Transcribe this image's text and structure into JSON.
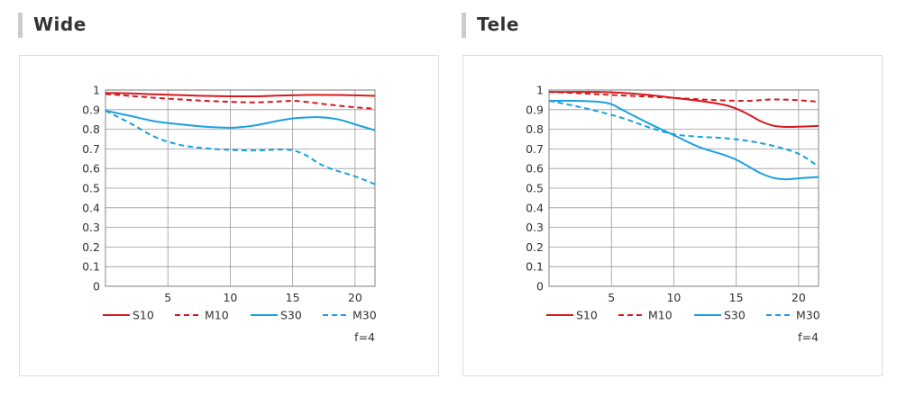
{
  "panels": [
    {
      "heading": "Wide"
    },
    {
      "heading": "Tele"
    }
  ],
  "colors": {
    "red": "#d7191f",
    "blue": "#1aa0e0",
    "grid": "#999999",
    "heading_bar": "#cccccc"
  },
  "chart_data": [
    {
      "type": "line",
      "title": "Wide",
      "xlim": [
        0,
        21.6
      ],
      "ylim": [
        0,
        1
      ],
      "xticks": [
        "5",
        "10",
        "15",
        "20"
      ],
      "xtick_values": [
        5,
        10,
        15,
        20
      ],
      "yticks": [
        "0",
        "0.1",
        "0.2",
        "0.3",
        "0.4",
        "0.5",
        "0.6",
        "0.7",
        "0.8",
        "0.9",
        "1"
      ],
      "ytick_values": [
        0,
        0.1,
        0.2,
        0.3,
        0.4,
        0.5,
        0.6,
        0.7,
        0.8,
        0.9,
        1
      ],
      "grid": true,
      "legend_position": "bottom",
      "annotation": "f=4",
      "series": [
        {
          "name": "S10",
          "color": "#d7191f",
          "dash": "solid",
          "points": [
            [
              0,
              0.985
            ],
            [
              2,
              0.983
            ],
            [
              4,
              0.978
            ],
            [
              6,
              0.974
            ],
            [
              8,
              0.97
            ],
            [
              10,
              0.968
            ],
            [
              12,
              0.968
            ],
            [
              14,
              0.972
            ],
            [
              16,
              0.975
            ],
            [
              18,
              0.975
            ],
            [
              20,
              0.973
            ],
            [
              21.6,
              0.97
            ]
          ]
        },
        {
          "name": "M10",
          "color": "#d7191f",
          "dash": "dashed",
          "points": [
            [
              0,
              0.98
            ],
            [
              2,
              0.97
            ],
            [
              4,
              0.96
            ],
            [
              6,
              0.952
            ],
            [
              8,
              0.945
            ],
            [
              10,
              0.94
            ],
            [
              12,
              0.937
            ],
            [
              14,
              0.942
            ],
            [
              15,
              0.945
            ],
            [
              16,
              0.94
            ],
            [
              18,
              0.925
            ],
            [
              20,
              0.912
            ],
            [
              21.6,
              0.905
            ]
          ]
        },
        {
          "name": "S30",
          "color": "#1aa0e0",
          "dash": "solid",
          "points": [
            [
              0,
              0.895
            ],
            [
              2,
              0.868
            ],
            [
              4,
              0.84
            ],
            [
              6,
              0.825
            ],
            [
              8,
              0.813
            ],
            [
              10,
              0.808
            ],
            [
              11,
              0.812
            ],
            [
              12,
              0.82
            ],
            [
              14,
              0.845
            ],
            [
              15,
              0.855
            ],
            [
              16,
              0.86
            ],
            [
              17,
              0.862
            ],
            [
              18,
              0.857
            ],
            [
              19,
              0.845
            ],
            [
              20,
              0.825
            ],
            [
              21.6,
              0.795
            ]
          ]
        },
        {
          "name": "M30",
          "color": "#1aa0e0",
          "dash": "dashed",
          "points": [
            [
              0,
              0.895
            ],
            [
              2,
              0.83
            ],
            [
              4,
              0.76
            ],
            [
              6,
              0.72
            ],
            [
              8,
              0.703
            ],
            [
              10,
              0.695
            ],
            [
              12,
              0.692
            ],
            [
              14,
              0.697
            ],
            [
              15,
              0.693
            ],
            [
              16,
              0.67
            ],
            [
              17,
              0.63
            ],
            [
              18,
              0.6
            ],
            [
              20,
              0.56
            ],
            [
              21.6,
              0.52
            ]
          ]
        }
      ]
    },
    {
      "type": "line",
      "title": "Tele",
      "xlim": [
        0,
        21.6
      ],
      "ylim": [
        0,
        1
      ],
      "xticks": [
        "5",
        "10",
        "15",
        "20"
      ],
      "xtick_values": [
        5,
        10,
        15,
        20
      ],
      "yticks": [
        "0",
        "0.1",
        "0.2",
        "0.3",
        "0.4",
        "0.5",
        "0.6",
        "0.7",
        "0.8",
        "0.9",
        "1"
      ],
      "ytick_values": [
        0,
        0.1,
        0.2,
        0.3,
        0.4,
        0.5,
        0.6,
        0.7,
        0.8,
        0.9,
        1
      ],
      "grid": true,
      "legend_position": "bottom",
      "annotation": "f=4",
      "series": [
        {
          "name": "S10",
          "color": "#d7191f",
          "dash": "solid",
          "points": [
            [
              0,
              0.99
            ],
            [
              2,
              0.99
            ],
            [
              4,
              0.99
            ],
            [
              6,
              0.985
            ],
            [
              8,
              0.975
            ],
            [
              10,
              0.96
            ],
            [
              12,
              0.945
            ],
            [
              14,
              0.925
            ],
            [
              15,
              0.905
            ],
            [
              16,
              0.875
            ],
            [
              17,
              0.84
            ],
            [
              18,
              0.818
            ],
            [
              19,
              0.812
            ],
            [
              20,
              0.813
            ],
            [
              21.6,
              0.817
            ]
          ]
        },
        {
          "name": "M10",
          "color": "#d7191f",
          "dash": "dashed",
          "points": [
            [
              0,
              0.99
            ],
            [
              2,
              0.985
            ],
            [
              4,
              0.978
            ],
            [
              6,
              0.972
            ],
            [
              8,
              0.966
            ],
            [
              10,
              0.96
            ],
            [
              12,
              0.953
            ],
            [
              14,
              0.947
            ],
            [
              16,
              0.945
            ],
            [
              18,
              0.952
            ],
            [
              20,
              0.948
            ],
            [
              21.6,
              0.94
            ]
          ]
        },
        {
          "name": "S30",
          "color": "#1aa0e0",
          "dash": "solid",
          "points": [
            [
              0,
              0.945
            ],
            [
              2,
              0.945
            ],
            [
              4,
              0.94
            ],
            [
              5,
              0.928
            ],
            [
              6,
              0.895
            ],
            [
              8,
              0.83
            ],
            [
              10,
              0.77
            ],
            [
              12,
              0.71
            ],
            [
              14,
              0.67
            ],
            [
              15,
              0.645
            ],
            [
              16,
              0.61
            ],
            [
              17,
              0.575
            ],
            [
              18,
              0.552
            ],
            [
              19,
              0.545
            ],
            [
              20,
              0.55
            ],
            [
              21.6,
              0.557
            ]
          ]
        },
        {
          "name": "M30",
          "color": "#1aa0e0",
          "dash": "dashed",
          "points": [
            [
              0,
              0.945
            ],
            [
              2,
              0.92
            ],
            [
              4,
              0.89
            ],
            [
              6,
              0.855
            ],
            [
              8,
              0.81
            ],
            [
              10,
              0.775
            ],
            [
              12,
              0.762
            ],
            [
              14,
              0.755
            ],
            [
              16,
              0.74
            ],
            [
              18,
              0.715
            ],
            [
              20,
              0.675
            ],
            [
              21.6,
              0.61
            ]
          ]
        }
      ]
    }
  ]
}
